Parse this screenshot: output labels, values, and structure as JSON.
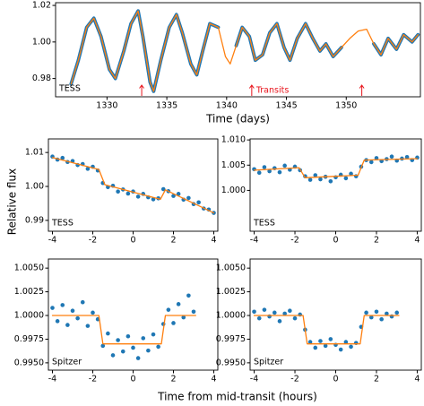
{
  "figure": {
    "ylabel": "Relative flux",
    "xlabel": "Time from mid-transit (hours)"
  },
  "chart_data": [
    {
      "type": "line",
      "label": "TESS",
      "xlabel": "Time (days)",
      "xlim": [
        1325.7,
        1356.2
      ],
      "ylim": [
        0.97,
        1.0215
      ],
      "xticks": [
        1330,
        1335,
        1340,
        1345,
        1350
      ],
      "yticks": [
        0.98,
        {
          "value": 1.0,
          "label": "1.00"
        },
        1.02
      ],
      "x": [
        1327.0,
        1327.6,
        1328.3,
        1328.9,
        1329.5,
        1330.2,
        1330.7,
        1331.4,
        1332.0,
        1332.6,
        1333.0,
        1333.6,
        1333.9,
        1334.5,
        1335.2,
        1335.8,
        1336.3,
        1337.0,
        1337.5,
        1338.0,
        1338.6,
        1339.3,
        1339.9,
        1340.3,
        1340.8,
        1341.3,
        1341.9,
        1342.4,
        1343.0,
        1343.6,
        1344.2,
        1344.8,
        1345.3,
        1345.9,
        1346.6,
        1347.2,
        1347.8,
        1348.3,
        1348.9,
        1349.6,
        1350.3,
        1351.0,
        1351.7,
        1352.3,
        1352.9,
        1353.5,
        1354.2,
        1354.8,
        1355.5,
        1356.0
      ],
      "series": [
        {
          "mode": "thick-line",
          "color": "#1f77b4",
          "values": [
            0.977,
            0.99,
            1.008,
            1.013,
            1.003,
            0.985,
            0.98,
            0.995,
            1.01,
            1.017,
            1.003,
            0.978,
            0.973,
            0.99,
            1.008,
            1.015,
            1.005,
            0.988,
            0.982,
            0.995,
            1.01,
            1.008,
            null,
            null,
            0.998,
            1.008,
            1.003,
            0.99,
            0.993,
            1.005,
            1.01,
            0.997,
            0.99,
            1.002,
            1.01,
            1.002,
            0.995,
            0.999,
            0.992,
            0.997,
            null,
            null,
            null,
            0.999,
            0.993,
            1.002,
            0.996,
            1.004,
            1.0,
            1.004
          ]
        },
        {
          "mode": "line",
          "color": "#ff7f0e",
          "values": [
            0.977,
            0.99,
            1.008,
            1.013,
            1.003,
            0.985,
            0.98,
            0.995,
            1.01,
            1.017,
            1.003,
            0.978,
            0.973,
            0.99,
            1.008,
            1.015,
            1.005,
            0.988,
            0.982,
            0.995,
            1.01,
            1.008,
            0.992,
            0.988,
            0.998,
            1.008,
            1.003,
            0.99,
            0.993,
            1.005,
            1.01,
            0.997,
            0.99,
            1.002,
            1.01,
            1.002,
            0.995,
            0.999,
            0.992,
            0.997,
            1.002,
            1.006,
            1.007,
            0.999,
            0.993,
            1.002,
            0.996,
            1.004,
            1.0,
            1.004
          ]
        }
      ],
      "annotation": {
        "text": "Transits",
        "color": "#e8141c",
        "x": [
          1332.9,
          1342.1,
          1351.3
        ]
      }
    },
    {
      "type": "scatter",
      "label": "TESS",
      "xlim": [
        -4.2,
        4.2
      ],
      "ylim": [
        0.9868,
        1.014
      ],
      "xticks": [
        -4,
        -2,
        0,
        2,
        4
      ],
      "yticks": [
        0.99,
        {
          "value": 1.0,
          "label": "1.00"
        },
        1.01
      ],
      "series": [
        {
          "mode": "markers",
          "color": "#1f77b4",
          "x": [
            -4,
            -3.75,
            -3.5,
            -3.25,
            -3,
            -2.75,
            -2.5,
            -2.25,
            -2,
            -1.75,
            -1.5,
            -1.25,
            -1,
            -0.75,
            -0.5,
            -0.25,
            0,
            0.25,
            0.5,
            0.75,
            1,
            1.25,
            1.5,
            1.75,
            2,
            2.25,
            2.5,
            2.75,
            3,
            3.25,
            3.5,
            3.75,
            4
          ],
          "values": [
            1.0088,
            1.0079,
            1.0084,
            1.0072,
            1.0075,
            1.0063,
            1.0066,
            1.0052,
            1.0058,
            1.0047,
            1.001,
            0.9998,
            1.0002,
            0.9985,
            0.9991,
            0.9979,
            0.9985,
            0.997,
            0.9978,
            0.9968,
            0.9962,
            0.9965,
            0.9992,
            0.9986,
            0.9972,
            0.9978,
            0.9961,
            0.9966,
            0.9948,
            0.9953,
            0.9935,
            0.9932,
            0.9922
          ]
        },
        {
          "mode": "line",
          "color": "#ff7f0e",
          "x": [
            -4,
            -1.7,
            -1.4,
            1.35,
            1.6,
            4
          ],
          "values": [
            1.0085,
            1.005,
            1.0005,
            0.9962,
            0.999,
            0.9922
          ]
        }
      ]
    },
    {
      "type": "scatter",
      "label": "TESS",
      "xlim": [
        -4.2,
        4.2
      ],
      "ylim": [
        0.9919,
        1.0102
      ],
      "xticks": [
        -4,
        -2,
        0,
        2,
        4
      ],
      "yticks": [
        {
          "value": 1.0,
          "label": "1.000"
        },
        1.005,
        {
          "value": 1.01,
          "label": "1.010"
        }
      ],
      "series": [
        {
          "mode": "markers",
          "color": "#1f77b4",
          "x": [
            -4,
            -3.75,
            -3.5,
            -3.25,
            -3,
            -2.75,
            -2.5,
            -2.25,
            -2,
            -1.75,
            -1.5,
            -1.25,
            -1,
            -0.75,
            -0.5,
            -0.25,
            0,
            0.25,
            0.5,
            0.75,
            1,
            1.25,
            1.5,
            1.75,
            2,
            2.25,
            2.5,
            2.75,
            3,
            3.25,
            3.5,
            3.75,
            4
          ],
          "values": [
            1.0042,
            1.0035,
            1.0046,
            1.0038,
            1.0044,
            1.0036,
            1.0049,
            1.0041,
            1.0047,
            1.004,
            1.0028,
            1.0021,
            1.003,
            1.0022,
            1.0027,
            1.0018,
            1.0026,
            1.0031,
            1.0024,
            1.0033,
            1.0028,
            1.0047,
            1.006,
            1.0056,
            1.0064,
            1.0058,
            1.0062,
            1.0067,
            1.0059,
            1.0063,
            1.0066,
            1.006,
            1.0065
          ]
        },
        {
          "mode": "line",
          "color": "#ff7f0e",
          "x": [
            -4,
            -1.8,
            -1.5,
            1.1,
            1.4,
            4
          ],
          "values": [
            1.004,
            1.0045,
            1.0025,
            1.003,
            1.006,
            1.0063
          ]
        }
      ]
    },
    {
      "type": "scatter",
      "label": "Spitzer",
      "xlim": [
        -4.2,
        4.2
      ],
      "ylim": [
        0.99423,
        1.00596
      ],
      "xticks": [
        -4,
        -2,
        0,
        2,
        4
      ],
      "yticks": [
        {
          "value": 0.995,
          "label": "0.9950"
        },
        0.9975,
        {
          "value": 1.0,
          "label": "1.0000"
        },
        1.0025,
        {
          "value": 1.005,
          "label": "1.0050"
        }
      ],
      "series": [
        {
          "mode": "markers",
          "color": "#1f77b4",
          "x": [
            -4,
            -3.75,
            -3.5,
            -3.25,
            -3,
            -2.75,
            -2.5,
            -2.25,
            -2,
            -1.75,
            -1.5,
            -1.25,
            -1,
            -0.75,
            -0.5,
            -0.25,
            0,
            0.25,
            0.5,
            0.75,
            1,
            1.25,
            1.5,
            1.75,
            2,
            2.25,
            2.5,
            2.75,
            3
          ],
          "values": [
            1.0008,
            0.9994,
            1.0011,
            0.999,
            1.0005,
            0.9997,
            1.0014,
            0.9989,
            1.0003,
            0.9996,
            0.9968,
            0.9981,
            0.9958,
            0.9974,
            0.9962,
            0.9978,
            0.9966,
            0.9955,
            0.9976,
            0.9963,
            0.998,
            0.9967,
            0.9991,
            1.0006,
            0.9992,
            1.0012,
            0.9998,
            1.0021,
            1.0004
          ]
        },
        {
          "mode": "line",
          "color": "#ff7f0e",
          "x": [
            -4,
            -1.7,
            -1.5,
            1.4,
            1.6,
            3.1
          ],
          "values": [
            1.0,
            1.0,
            0.997,
            0.997,
            1.0,
            1.0
          ]
        }
      ]
    },
    {
      "type": "scatter",
      "label": "Spitzer",
      "xlim": [
        -4.2,
        4.2
      ],
      "ylim": [
        0.99423,
        1.00596
      ],
      "xticks": [
        -4,
        -2,
        0,
        2,
        4
      ],
      "yticks": [
        {
          "value": 0.995,
          "label": "0.9950"
        },
        0.9975,
        {
          "value": 1.0,
          "label": "1.0000"
        },
        1.0025,
        {
          "value": 1.005,
          "label": "1.0050"
        }
      ],
      "series": [
        {
          "mode": "markers",
          "color": "#1f77b4",
          "x": [
            -4,
            -3.75,
            -3.5,
            -3.25,
            -3,
            -2.75,
            -2.5,
            -2.25,
            -2,
            -1.75,
            -1.5,
            -1.25,
            -1,
            -0.75,
            -0.5,
            -0.25,
            0,
            0.25,
            0.5,
            0.75,
            1,
            1.25,
            1.5,
            1.75,
            2,
            2.25,
            2.5,
            2.75,
            3
          ],
          "values": [
            1.0004,
            0.9997,
            1.0006,
            0.9999,
            1.0003,
            0.9994,
            1.0002,
            1.0005,
            0.9997,
            1.0001,
            0.9985,
            0.9972,
            0.9966,
            0.9973,
            0.9968,
            0.9975,
            0.9969,
            0.9964,
            0.9972,
            0.9967,
            0.9971,
            0.9988,
            1.0003,
            0.9998,
            1.0004,
            0.9996,
            1.0002,
            0.9999,
            1.0003
          ]
        },
        {
          "mode": "line",
          "color": "#ff7f0e",
          "x": [
            -4,
            -1.6,
            -1.4,
            1.2,
            1.4,
            3.1
          ],
          "values": [
            1.0,
            1.0,
            0.997,
            0.997,
            1.0,
            1.0
          ]
        }
      ]
    }
  ]
}
